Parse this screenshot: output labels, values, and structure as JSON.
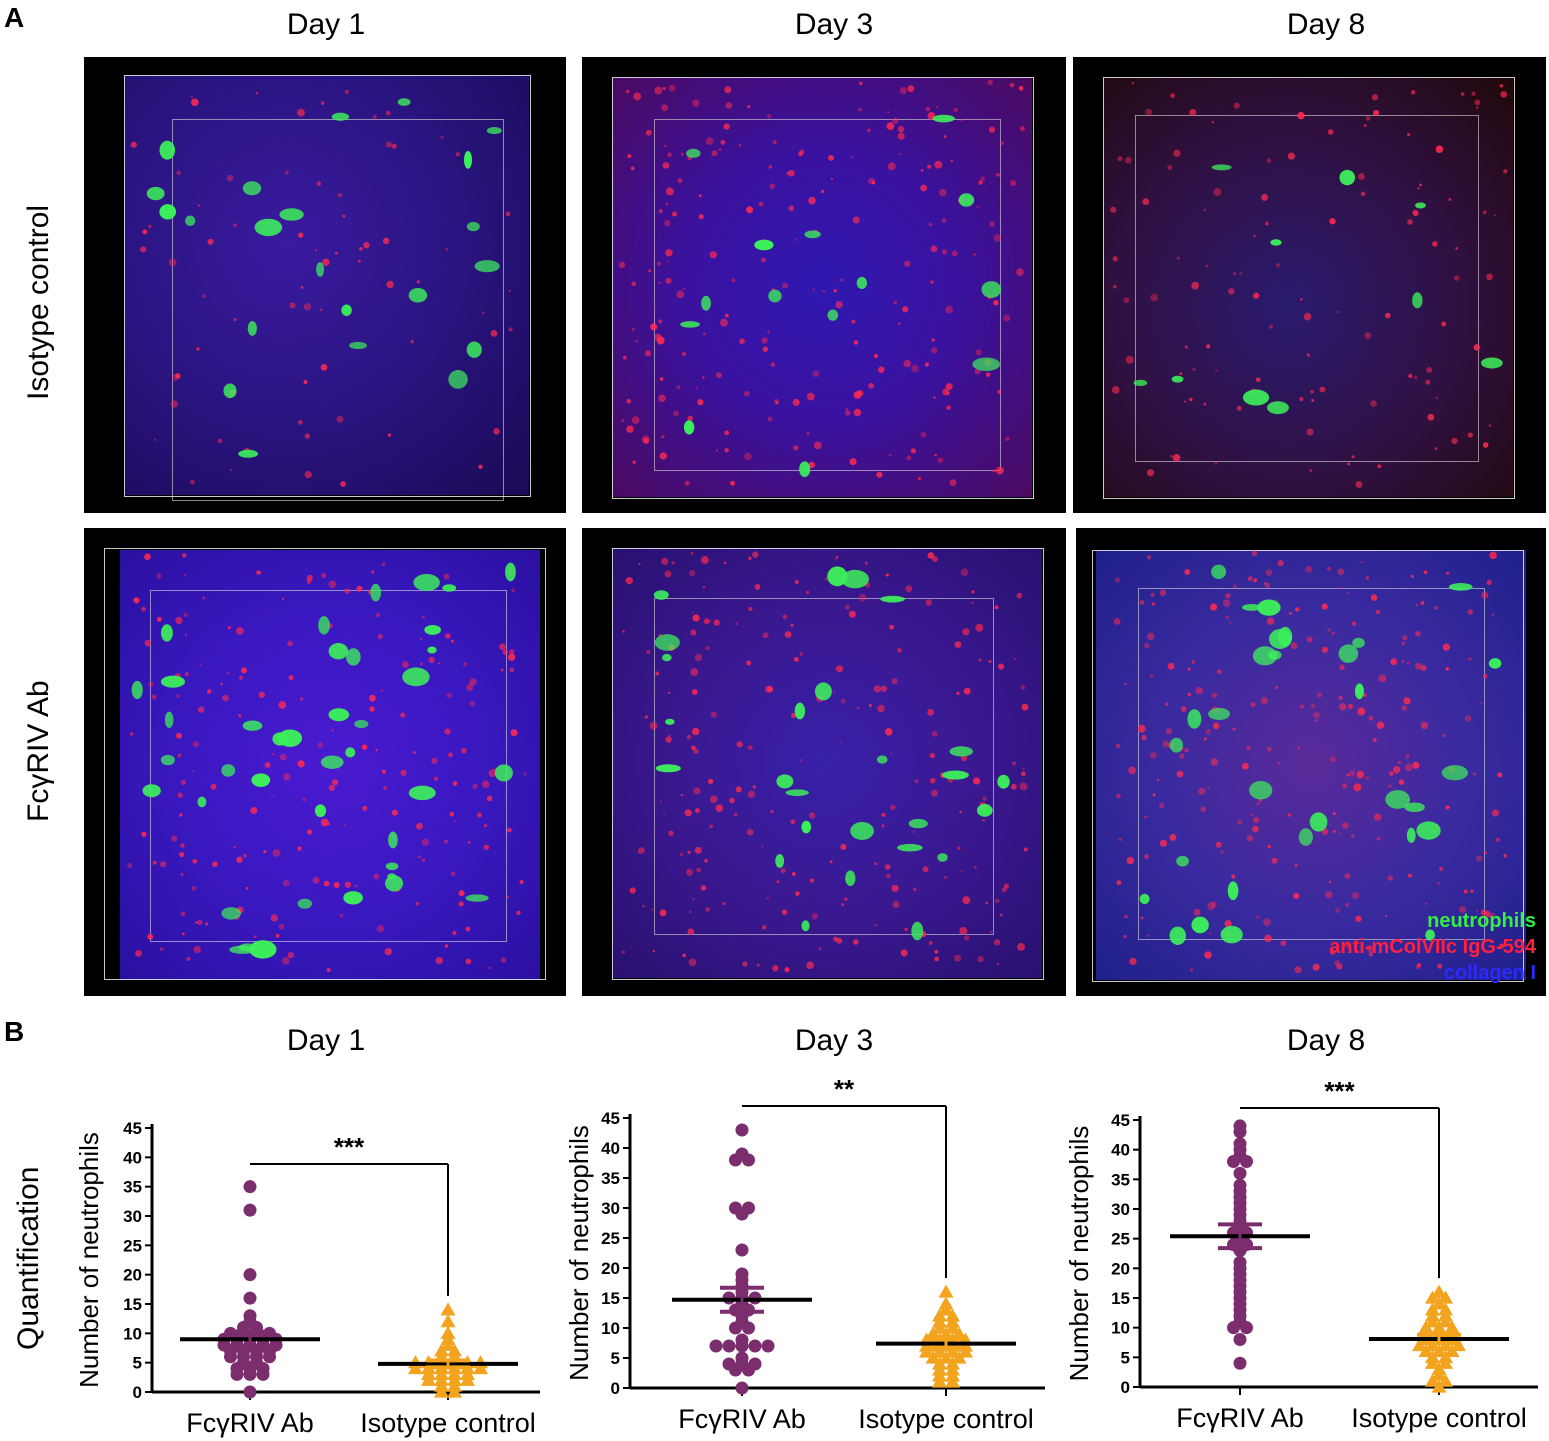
{
  "panel_a_letter": "A",
  "panel_b_letter": "B",
  "day_titles_a": [
    "Day 1",
    "Day 3",
    "Day 8"
  ],
  "day_titles_b": [
    "Day 1",
    "Day 3",
    "Day 8"
  ],
  "row_labels": [
    "Isotype control",
    "FcγRIV Ab"
  ],
  "quant_label": "Quantification",
  "legend": {
    "neutrophils": "neutrophils",
    "antibody": "anti-mColVIIc IgG-594",
    "collagen": "collagen I",
    "colors": {
      "neutrophils": "#33ee44",
      "antibody": "#ff2040",
      "collagen": "#2a2aff"
    }
  },
  "marker_colors": {
    "fcgriv": "#7b2d6e",
    "isotype": "#f2a41e"
  },
  "chart_data": [
    {
      "type": "scatter",
      "title": "Day 1",
      "ylabel": "Number of neutrophils",
      "ylim": [
        0,
        45
      ],
      "yticks": [
        0,
        5,
        10,
        15,
        20,
        25,
        30,
        35,
        40,
        45
      ],
      "categories": [
        "FcγRIV Ab",
        "Isotype control"
      ],
      "significance": "***",
      "series": [
        {
          "name": "FcγRIV Ab",
          "marker": "circle",
          "mean": 9,
          "sem": 1.3,
          "values": [
            35,
            31,
            20,
            16,
            13,
            12,
            11,
            11,
            10,
            10,
            10,
            10,
            9,
            9,
            9,
            9,
            9,
            8,
            8,
            8,
            8,
            8,
            7,
            7,
            7,
            7,
            6,
            6,
            6,
            6,
            5,
            5,
            4,
            4,
            4,
            3,
            3,
            3,
            0
          ]
        },
        {
          "name": "Isotype control",
          "marker": "triangle",
          "mean": 4.8,
          "sem": 0.6,
          "values": [
            14,
            12,
            10,
            9,
            8,
            7,
            7,
            6,
            6,
            5,
            5,
            5,
            5,
            5,
            5,
            4,
            4,
            4,
            4,
            4,
            4,
            3,
            3,
            3,
            3,
            2,
            2,
            2,
            2,
            1,
            1,
            0,
            0
          ]
        }
      ]
    },
    {
      "type": "scatter",
      "title": "Day 3",
      "ylabel": "Number of neutrophils",
      "ylim": [
        0,
        45
      ],
      "yticks": [
        0,
        5,
        10,
        15,
        20,
        25,
        30,
        35,
        40,
        45
      ],
      "categories": [
        "FcγRIV Ab",
        "Isotype control"
      ],
      "significance": "**",
      "series": [
        {
          "name": "FcγRIV Ab",
          "marker": "circle",
          "mean": 14.7,
          "sem": 2.0,
          "values": [
            43,
            39,
            38,
            38,
            30,
            30,
            29,
            23,
            19,
            18,
            17,
            16,
            15,
            15,
            15,
            14,
            13,
            13,
            12,
            11,
            10,
            10,
            8,
            7,
            7,
            7,
            7,
            7,
            5,
            4,
            4,
            4,
            3,
            3,
            0
          ]
        },
        {
          "name": "Isotype control",
          "marker": "triangle",
          "mean": 7.4,
          "sem": 0.7,
          "values": [
            16,
            14,
            13,
            12,
            12,
            11,
            11,
            10,
            10,
            9,
            9,
            9,
            8,
            8,
            8,
            8,
            7,
            7,
            7,
            7,
            6,
            6,
            6,
            6,
            5,
            5,
            5,
            4,
            4,
            3,
            3,
            2,
            2,
            1,
            1
          ]
        }
      ]
    },
    {
      "type": "scatter",
      "title": "Day 8",
      "ylabel": "Number of neutrophils",
      "ylim": [
        0,
        45
      ],
      "yticks": [
        0,
        5,
        10,
        15,
        20,
        25,
        30,
        35,
        40,
        45
      ],
      "categories": [
        "FcγRIV Ab",
        "Isotype control"
      ],
      "significance": "***",
      "series": [
        {
          "name": "FcγRIV Ab",
          "marker": "circle",
          "mean": 25.4,
          "sem": 2.0,
          "values": [
            44,
            43,
            41,
            40,
            39,
            38,
            38,
            36,
            34,
            33,
            32,
            31,
            30,
            29,
            28,
            27,
            26,
            26,
            25,
            24,
            24,
            23,
            21,
            20,
            19,
            18,
            17,
            16,
            15,
            14,
            13,
            12,
            11,
            10,
            10,
            8,
            4
          ]
        },
        {
          "name": "Isotype control",
          "marker": "triangle",
          "mean": 8.1,
          "sem": 0.7,
          "values": [
            16,
            15,
            15,
            14,
            13,
            13,
            12,
            12,
            11,
            11,
            10,
            10,
            10,
            9,
            9,
            9,
            8,
            8,
            8,
            7,
            7,
            7,
            7,
            6,
            6,
            6,
            5,
            5,
            4,
            4,
            3,
            2,
            1,
            1,
            0
          ]
        }
      ]
    }
  ]
}
